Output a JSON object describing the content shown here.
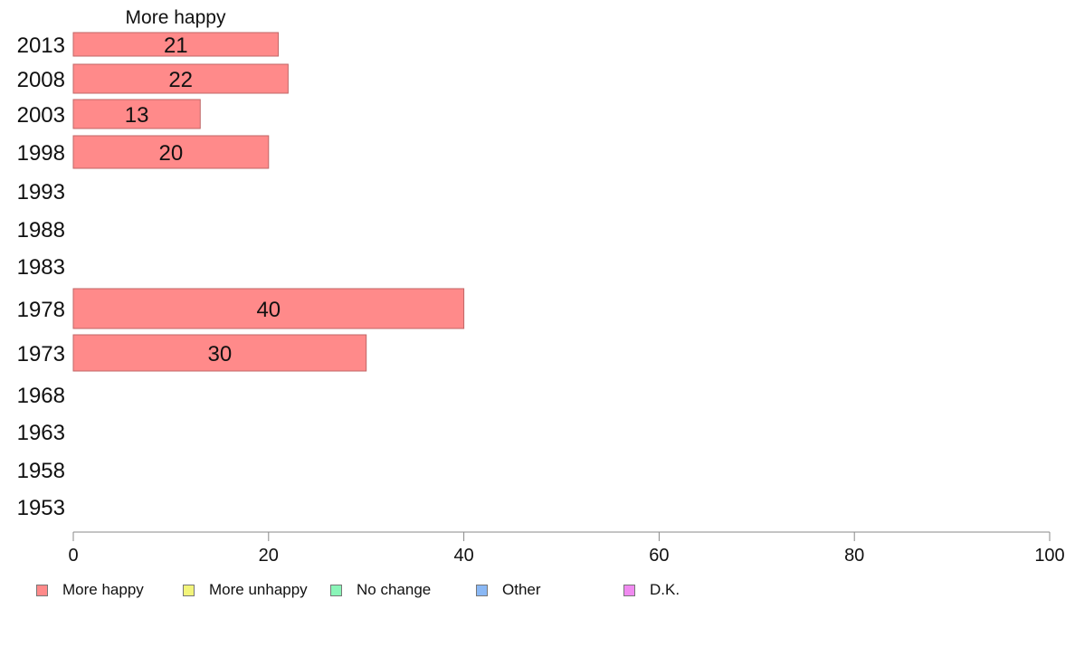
{
  "chart_data": {
    "type": "bar",
    "orientation": "horizontal",
    "title": "More happy",
    "categories": [
      "2013",
      "2008",
      "2003",
      "1998",
      "1993",
      "1988",
      "1983",
      "1978",
      "1973",
      "1968",
      "1963",
      "1958",
      "1953"
    ],
    "series": [
      {
        "name": "More happy",
        "color": "#ff8a8a",
        "values": [
          21,
          22,
          13,
          20,
          null,
          null,
          null,
          40,
          30,
          null,
          null,
          null,
          null
        ]
      },
      {
        "name": "More unhappy",
        "color": "#f2f47a",
        "values": [
          null,
          null,
          null,
          null,
          null,
          null,
          null,
          null,
          null,
          null,
          null,
          null,
          null
        ]
      },
      {
        "name": "No change",
        "color": "#8af5b8",
        "values": [
          null,
          null,
          null,
          null,
          null,
          null,
          null,
          null,
          null,
          null,
          null,
          null,
          null
        ]
      },
      {
        "name": "Other",
        "color": "#8ab8f5",
        "values": [
          null,
          null,
          null,
          null,
          null,
          null,
          null,
          null,
          null,
          null,
          null,
          null,
          null
        ]
      },
      {
        "name": "D.K.",
        "color": "#f08af0",
        "values": [
          null,
          null,
          null,
          null,
          null,
          null,
          null,
          null,
          null,
          null,
          null,
          null,
          null
        ]
      }
    ],
    "data_labels": [
      "21",
      "22",
      "13",
      "20",
      "",
      "",
      "",
      "40",
      "30",
      "",
      "",
      "",
      ""
    ],
    "xlim": [
      0,
      100
    ],
    "xticks": [
      "0",
      "20",
      "40",
      "60",
      "80",
      "100"
    ],
    "grid": false,
    "legend_position": "bottom"
  }
}
